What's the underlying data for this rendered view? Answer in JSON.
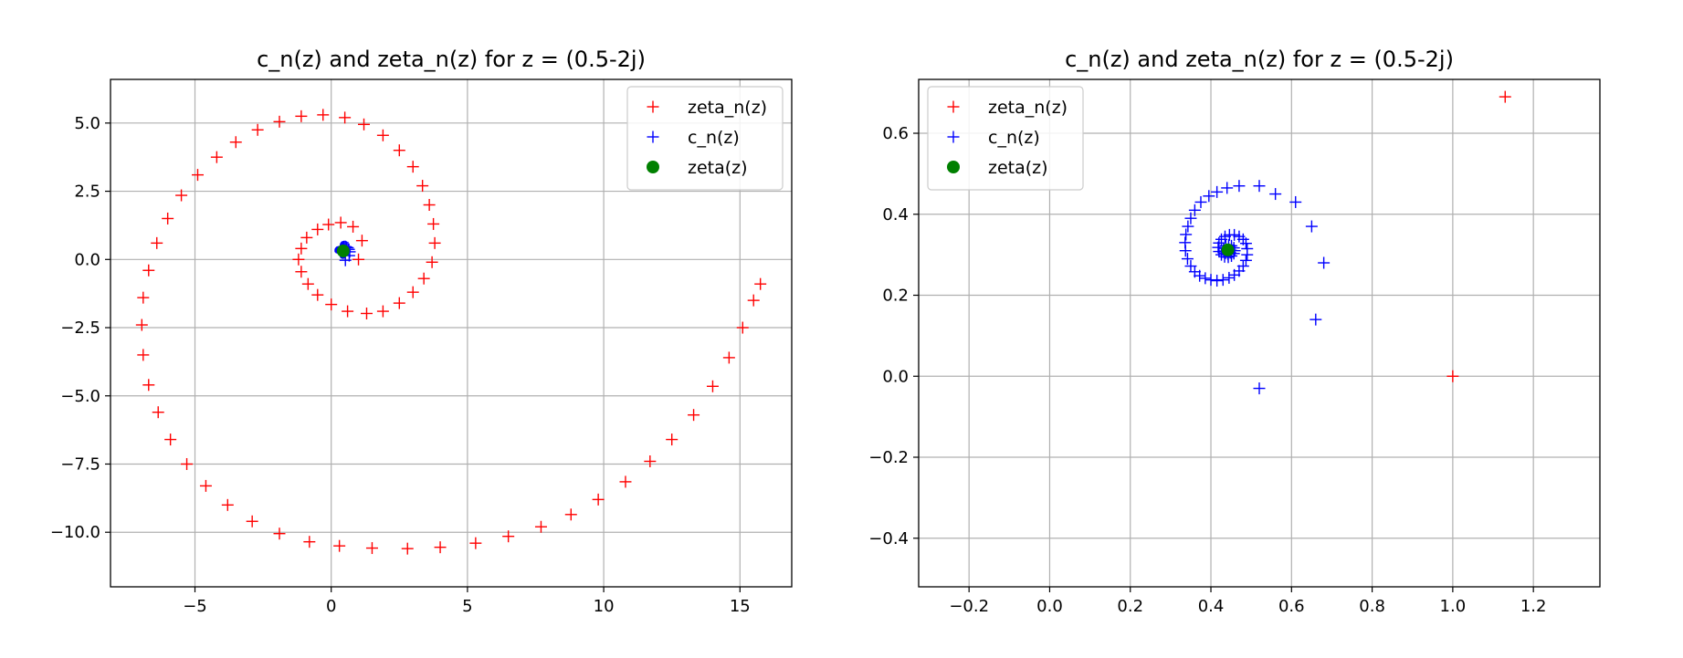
{
  "chart_data": [
    {
      "type": "scatter",
      "title": "c_n(z) and zeta_n(z) for z = (0.5-2j)",
      "xlabel": "",
      "ylabel": "",
      "xlim": [
        -8.1,
        16.9
      ],
      "ylim": [
        -12.0,
        6.6
      ],
      "xticks": [
        -5,
        0,
        5,
        10,
        15
      ],
      "xtick_labels": [
        "−5",
        "0",
        "5",
        "10",
        "15"
      ],
      "yticks": [
        -10.0,
        -7.5,
        -5.0,
        -2.5,
        0.0,
        2.5,
        5.0
      ],
      "ytick_labels": [
        "−10.0",
        "−7.5",
        "−5.0",
        "−2.5",
        "0.0",
        "2.5",
        "5.0"
      ],
      "grid": true,
      "legend_position": "top-right",
      "series": [
        {
          "name": "zeta_n(z)",
          "color": "#ff0000",
          "marker": "plus",
          "points": [
            [
              1.0,
              0.0
            ],
            [
              1.13,
              0.69
            ],
            [
              0.8,
              1.2
            ],
            [
              0.35,
              1.35
            ],
            [
              -0.1,
              1.28
            ],
            [
              -0.5,
              1.1
            ],
            [
              -0.9,
              0.8
            ],
            [
              -1.1,
              0.4
            ],
            [
              -1.2,
              0.0
            ],
            [
              -1.1,
              -0.45
            ],
            [
              -0.85,
              -0.9
            ],
            [
              -0.5,
              -1.3
            ],
            [
              0.0,
              -1.65
            ],
            [
              0.6,
              -1.9
            ],
            [
              1.3,
              -1.98
            ],
            [
              1.9,
              -1.9
            ],
            [
              2.5,
              -1.6
            ],
            [
              3.0,
              -1.2
            ],
            [
              3.4,
              -0.7
            ],
            [
              3.7,
              -0.1
            ],
            [
              3.8,
              0.6
            ],
            [
              3.75,
              1.3
            ],
            [
              3.6,
              2.0
            ],
            [
              3.35,
              2.7
            ],
            [
              3.0,
              3.4
            ],
            [
              2.5,
              4.0
            ],
            [
              1.9,
              4.55
            ],
            [
              1.2,
              4.95
            ],
            [
              0.5,
              5.2
            ],
            [
              -0.3,
              5.3
            ],
            [
              -1.1,
              5.25
            ],
            [
              -1.9,
              5.05
            ],
            [
              -2.7,
              4.75
            ],
            [
              -3.5,
              4.3
            ],
            [
              -4.2,
              3.75
            ],
            [
              -4.9,
              3.1
            ],
            [
              -5.5,
              2.35
            ],
            [
              -6.0,
              1.5
            ],
            [
              -6.4,
              0.6
            ],
            [
              -6.7,
              -0.4
            ],
            [
              -6.9,
              -1.4
            ],
            [
              -6.95,
              -2.4
            ],
            [
              -6.9,
              -3.5
            ],
            [
              -6.7,
              -4.6
            ],
            [
              -6.35,
              -5.6
            ],
            [
              -5.9,
              -6.6
            ],
            [
              -5.3,
              -7.5
            ],
            [
              -4.6,
              -8.3
            ],
            [
              -3.8,
              -9.0
            ],
            [
              -2.9,
              -9.6
            ],
            [
              -1.9,
              -10.05
            ],
            [
              -0.8,
              -10.35
            ],
            [
              0.3,
              -10.5
            ],
            [
              1.5,
              -10.58
            ],
            [
              2.8,
              -10.6
            ],
            [
              4.0,
              -10.55
            ],
            [
              5.3,
              -10.4
            ],
            [
              6.5,
              -10.15
            ],
            [
              7.7,
              -9.8
            ],
            [
              8.8,
              -9.35
            ],
            [
              9.8,
              -8.8
            ],
            [
              10.8,
              -8.15
            ],
            [
              11.7,
              -7.4
            ],
            [
              12.5,
              -6.6
            ],
            [
              13.3,
              -5.7
            ],
            [
              14.0,
              -4.65
            ],
            [
              14.6,
              -3.6
            ],
            [
              15.1,
              -2.5
            ],
            [
              15.5,
              -1.5
            ],
            [
              15.75,
              -0.9
            ]
          ]
        },
        {
          "name": "c_n(z)",
          "color": "#0000ff",
          "marker": "plus",
          "points": [
            [
              0.52,
              -0.03
            ],
            [
              0.66,
              0.14
            ],
            [
              0.68,
              0.28
            ],
            [
              0.65,
              0.37
            ],
            [
              0.61,
              0.43
            ],
            [
              0.56,
              0.45
            ],
            [
              0.52,
              0.47
            ],
            [
              0.47,
              0.47
            ],
            [
              0.44,
              0.46
            ],
            [
              0.41,
              0.45
            ],
            [
              0.39,
              0.44
            ],
            [
              0.37,
              0.42
            ],
            [
              0.35,
              0.39
            ],
            [
              0.34,
              0.36
            ],
            [
              0.34,
              0.33
            ],
            [
              0.34,
              0.3
            ],
            [
              0.35,
              0.28
            ],
            [
              0.37,
              0.26
            ],
            [
              0.39,
              0.25
            ],
            [
              0.42,
              0.24
            ],
            [
              0.44,
              0.24
            ],
            [
              0.47,
              0.25
            ],
            [
              0.49,
              0.27
            ],
            [
              0.5,
              0.29
            ],
            [
              0.5,
              0.31
            ],
            [
              0.49,
              0.33
            ],
            [
              0.47,
              0.34
            ],
            [
              0.44,
              0.34
            ],
            [
              0.42,
              0.33
            ],
            [
              0.41,
              0.31
            ],
            [
              0.42,
              0.29
            ],
            [
              0.44,
              0.29
            ],
            [
              0.46,
              0.3
            ]
          ]
        },
        {
          "name": "zeta(z)",
          "color": "#008000",
          "marker": "circle",
          "points": [
            [
              0.44,
              0.31
            ]
          ]
        }
      ]
    },
    {
      "type": "scatter",
      "title": "c_n(z) and zeta_n(z) for z = (0.5-2j)",
      "xlabel": "",
      "ylabel": "",
      "xlim": [
        -0.325,
        1.365
      ],
      "ylim": [
        -0.52,
        0.733
      ],
      "xticks": [
        -0.2,
        0.0,
        0.2,
        0.4,
        0.6,
        0.8,
        1.0,
        1.2
      ],
      "xtick_labels": [
        "−0.2",
        "0.0",
        "0.2",
        "0.4",
        "0.6",
        "0.8",
        "1.0",
        "1.2"
      ],
      "yticks": [
        -0.4,
        -0.2,
        0.0,
        0.2,
        0.4,
        0.6
      ],
      "ytick_labels": [
        "−0.4",
        "−0.2",
        "0.0",
        "0.2",
        "0.4",
        "0.6"
      ],
      "grid": true,
      "legend_position": "top-left",
      "series": [
        {
          "name": "zeta_n(z)",
          "color": "#ff0000",
          "marker": "plus",
          "points": [
            [
              1.0,
              0.0
            ],
            [
              1.13,
              0.69
            ]
          ]
        },
        {
          "name": "c_n(z)",
          "color": "#0000ff",
          "marker": "plus",
          "points": [
            [
              0.52,
              -0.03
            ],
            [
              0.66,
              0.14
            ],
            [
              0.68,
              0.28
            ],
            [
              0.65,
              0.37
            ],
            [
              0.61,
              0.43
            ],
            [
              0.56,
              0.45
            ],
            [
              0.52,
              0.47
            ],
            [
              0.47,
              0.47
            ],
            [
              0.44,
              0.465
            ],
            [
              0.415,
              0.455
            ],
            [
              0.395,
              0.445
            ],
            [
              0.375,
              0.43
            ],
            [
              0.36,
              0.41
            ],
            [
              0.35,
              0.39
            ],
            [
              0.343,
              0.37
            ],
            [
              0.338,
              0.35
            ],
            [
              0.336,
              0.33
            ],
            [
              0.337,
              0.31
            ],
            [
              0.342,
              0.29
            ],
            [
              0.35,
              0.272
            ],
            [
              0.36,
              0.258
            ],
            [
              0.372,
              0.248
            ],
            [
              0.386,
              0.242
            ],
            [
              0.4,
              0.238
            ],
            [
              0.415,
              0.236
            ],
            [
              0.43,
              0.238
            ],
            [
              0.445,
              0.243
            ],
            [
              0.458,
              0.25
            ],
            [
              0.47,
              0.26
            ],
            [
              0.48,
              0.272
            ],
            [
              0.487,
              0.286
            ],
            [
              0.49,
              0.3
            ],
            [
              0.49,
              0.315
            ],
            [
              0.487,
              0.328
            ],
            [
              0.48,
              0.338
            ],
            [
              0.47,
              0.345
            ],
            [
              0.458,
              0.349
            ],
            [
              0.446,
              0.349
            ],
            [
              0.435,
              0.345
            ],
            [
              0.426,
              0.338
            ],
            [
              0.42,
              0.329
            ],
            [
              0.418,
              0.318
            ],
            [
              0.42,
              0.308
            ],
            [
              0.426,
              0.3
            ],
            [
              0.434,
              0.295
            ],
            [
              0.443,
              0.294
            ],
            [
              0.451,
              0.297
            ],
            [
              0.457,
              0.303
            ],
            [
              0.459,
              0.31
            ],
            [
              0.457,
              0.317
            ],
            [
              0.451,
              0.322
            ],
            [
              0.444,
              0.324
            ],
            [
              0.437,
              0.322
            ],
            [
              0.432,
              0.316
            ],
            [
              0.432,
              0.309
            ],
            [
              0.436,
              0.304
            ],
            [
              0.442,
              0.302
            ],
            [
              0.448,
              0.305
            ],
            [
              0.45,
              0.311
            ]
          ]
        },
        {
          "name": "zeta(z)",
          "color": "#008000",
          "marker": "circle",
          "points": [
            [
              0.442,
              0.312
            ]
          ]
        }
      ]
    }
  ]
}
